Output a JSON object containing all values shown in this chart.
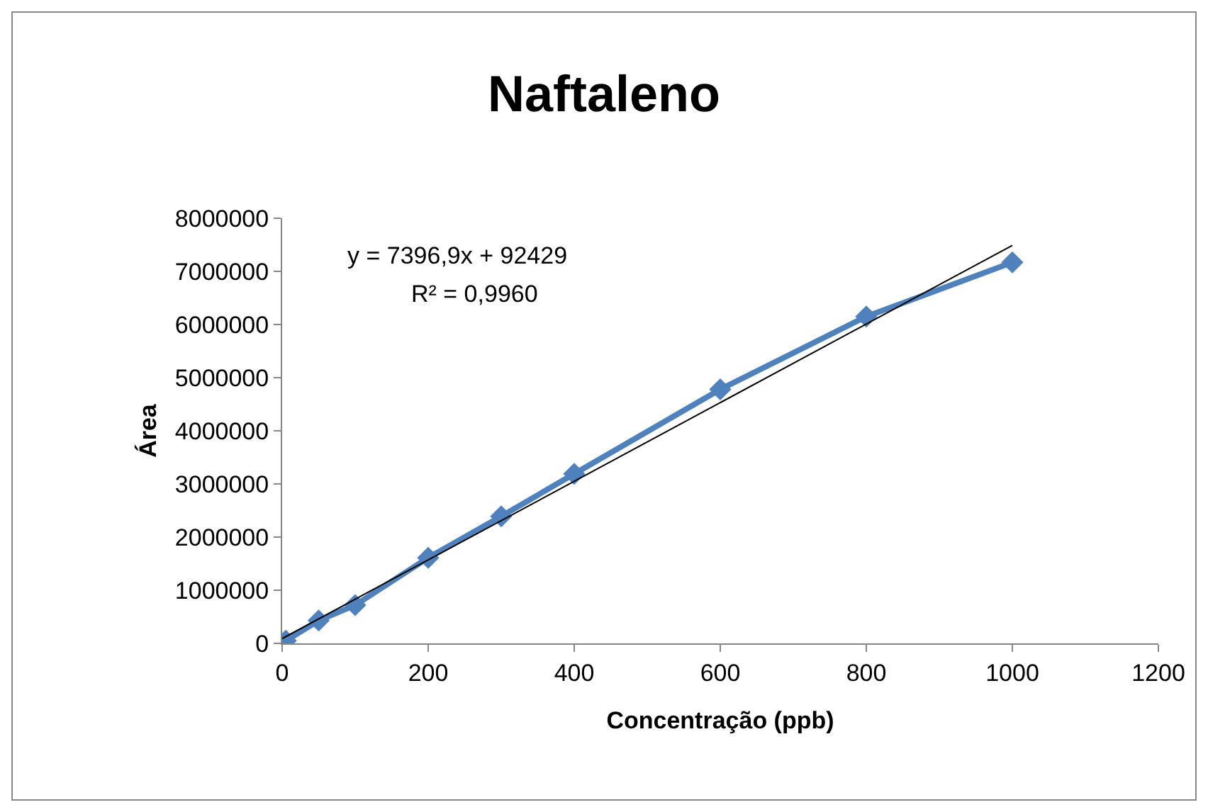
{
  "chart_data": {
    "type": "line",
    "title": "Naftaleno",
    "xlabel": "Concentração (ppb)",
    "ylabel": "Área",
    "x": [
      5,
      50,
      100,
      200,
      300,
      400,
      600,
      800,
      1000
    ],
    "series": [
      {
        "color": "#4f81bd",
        "marker": "diamond",
        "values": [
          50000,
          430000,
          720000,
          1610000,
          2390000,
          3190000,
          4780000,
          6150000,
          7170000
        ]
      },
      {
        "type": "line",
        "color": "#000000",
        "marker": "none",
        "x": [
          0,
          1000
        ],
        "values": [
          90000,
          7490000
        ]
      }
    ],
    "annotations": [
      "y = 7396,9x + 92429",
      "R² = 0,9960"
    ],
    "xlim": [
      0,
      1200
    ],
    "xticks": [
      0,
      200,
      400,
      600,
      800,
      1000,
      1200
    ],
    "ylim": [
      0,
      8000000
    ],
    "yticks": [
      0,
      1000000,
      2000000,
      3000000,
      4000000,
      5000000,
      6000000,
      7000000,
      8000000
    ],
    "grid": false
  }
}
